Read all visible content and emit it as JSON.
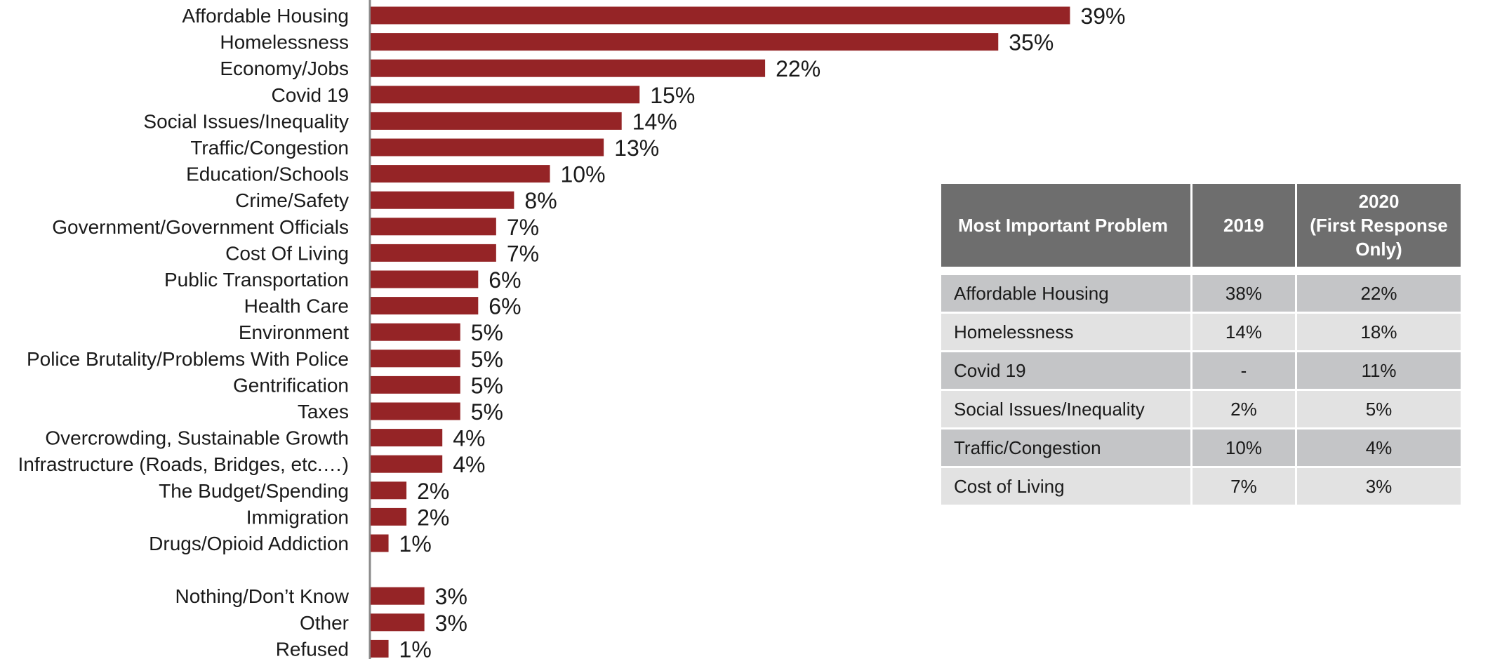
{
  "chart_data": {
    "type": "bar",
    "orientation": "horizontal",
    "categories": [
      "Affordable Housing",
      "Homelessness",
      "Economy/Jobs",
      "Covid 19",
      "Social Issues/Inequality",
      "Traffic/Congestion",
      "Education/Schools",
      "Crime/Safety",
      "Government/Government Officials",
      "Cost Of Living",
      "Public Transportation",
      "Health Care",
      "Environment",
      "Police Brutality/Problems With Police",
      "Gentrification",
      "Taxes",
      "Overcrowding, Sustainable Growth",
      "Infrastructure (Roads, Bridges, etc.…)",
      "The Budget/Spending",
      "Immigration",
      "Drugs/Opioid Addiction",
      "Nothing/Don’t Know",
      "Other",
      "Refused"
    ],
    "values": [
      39,
      35,
      22,
      15,
      14,
      13,
      10,
      8,
      7,
      7,
      6,
      6,
      5,
      5,
      5,
      5,
      4,
      4,
      2,
      2,
      1,
      3,
      3,
      1
    ],
    "value_labels": [
      "39%",
      "35%",
      "22%",
      "15%",
      "14%",
      "13%",
      "10%",
      "8%",
      "7%",
      "7%",
      "6%",
      "6%",
      "5%",
      "5%",
      "5%",
      "5%",
      "4%",
      "4%",
      "2%",
      "2%",
      "1%",
      "3%",
      "3%",
      "1%"
    ],
    "group_gap_before_index": 21,
    "bar_color": "#952426",
    "xlim": [
      0,
      40
    ],
    "title": "",
    "xlabel": "",
    "ylabel": ""
  },
  "table": {
    "headers": [
      "Most Important Problem",
      "2019",
      "2020\n(First Response Only)"
    ],
    "rows": [
      [
        "Affordable Housing",
        "38%",
        "22%"
      ],
      [
        "Homelessness",
        "14%",
        "18%"
      ],
      [
        "Covid 19",
        "-",
        "11%"
      ],
      [
        "Social Issues/Inequality",
        "2%",
        "5%"
      ],
      [
        "Traffic/Congestion",
        "10%",
        "4%"
      ],
      [
        "Cost of Living",
        "7%",
        "3%"
      ]
    ],
    "header_color": "#6e6e6e",
    "row_colors": [
      "#c4c5c7",
      "#e2e2e2"
    ]
  }
}
